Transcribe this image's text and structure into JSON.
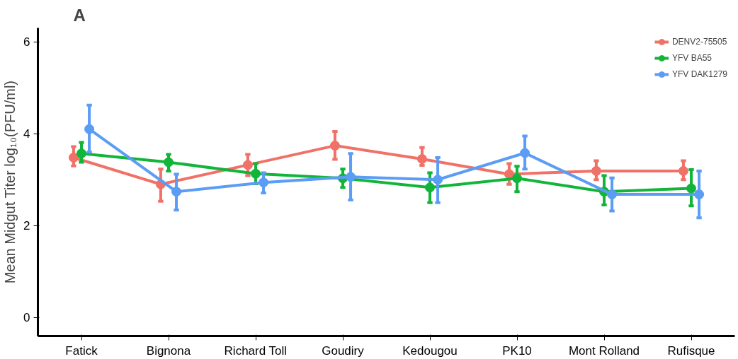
{
  "chart_data": {
    "type": "line",
    "title": "A",
    "ylabel": "Mean Midgut Titer log₁₀(PFU/ml)",
    "categories": [
      "Fatick",
      "Bignona",
      "Richard Toll",
      "Goudiry",
      "Kedougou",
      "PK10",
      "Mont Rolland",
      "Rufisque"
    ],
    "series": [
      {
        "name": "DENV2-75505",
        "color": "#f07167",
        "values": [
          3.48,
          2.9,
          3.32,
          3.74,
          3.45,
          3.12,
          3.19,
          3.19
        ],
        "errors": [
          [
            3.3,
            3.72
          ],
          [
            2.53,
            3.23
          ],
          [
            3.09,
            3.55
          ],
          [
            3.44,
            4.05
          ],
          [
            3.31,
            3.7
          ],
          [
            2.9,
            3.35
          ],
          [
            3.0,
            3.41
          ],
          [
            3.0,
            3.41
          ]
        ]
      },
      {
        "name": "YFV BA55",
        "color": "#12b53a",
        "values": [
          3.57,
          3.38,
          3.13,
          3.03,
          2.83,
          3.03,
          2.74,
          2.81
        ],
        "errors": [
          [
            3.38,
            3.81
          ],
          [
            3.19,
            3.55
          ],
          [
            2.91,
            3.35
          ],
          [
            2.83,
            3.23
          ],
          [
            2.5,
            3.15
          ],
          [
            2.74,
            3.29
          ],
          [
            2.45,
            3.09
          ],
          [
            2.43,
            3.22
          ]
        ]
      },
      {
        "name": "YFV DAK1279",
        "color": "#5b9cf5",
        "values": [
          4.1,
          2.74,
          2.94,
          3.06,
          3.0,
          3.58,
          2.68,
          2.68
        ],
        "errors": [
          [
            3.6,
            4.62
          ],
          [
            2.34,
            3.12
          ],
          [
            2.71,
            3.15
          ],
          [
            2.56,
            3.57
          ],
          [
            2.5,
            3.48
          ],
          [
            3.23,
            3.95
          ],
          [
            2.32,
            3.04
          ],
          [
            2.17,
            3.19
          ]
        ]
      }
    ],
    "ylim": [
      -0.4,
      6.3
    ],
    "yticks": [
      0,
      2,
      4,
      6
    ],
    "grid": false,
    "legend": "top right",
    "marker": "circle",
    "line_style": "solid"
  }
}
